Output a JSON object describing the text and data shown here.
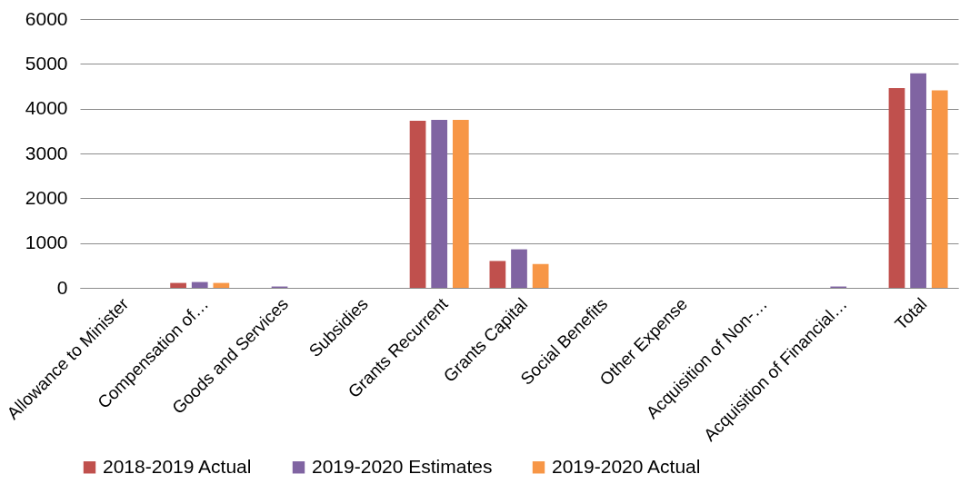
{
  "chart_data": {
    "type": "bar",
    "categories": [
      "Allowance to Minister",
      "Compensation of…",
      "Goods and Services",
      "Subsidies",
      "Grants Recurrent",
      "Grants Capital",
      "Social Benefits",
      "Other Expense",
      "Acquisition of Non-…",
      "Acquisition of Financial…",
      "Total"
    ],
    "series": [
      {
        "name": "2018-2019 Actual",
        "color": "#c0504d",
        "values": [
          0,
          110,
          0,
          0,
          3730,
          600,
          0,
          0,
          0,
          0,
          4460
        ]
      },
      {
        "name": "2019-2020 Estimates",
        "color": "#8064a2",
        "values": [
          0,
          130,
          30,
          0,
          3750,
          860,
          0,
          0,
          0,
          30,
          4790
        ]
      },
      {
        "name": "2019-2020 Actual",
        "color": "#f79646",
        "values": [
          0,
          110,
          0,
          0,
          3750,
          530,
          0,
          0,
          0,
          0,
          4410
        ]
      }
    ],
    "ylim": [
      0,
      6000
    ],
    "yticks": [
      0,
      1000,
      2000,
      3000,
      4000,
      5000,
      6000
    ],
    "grid": "y",
    "legend": "bottom"
  }
}
